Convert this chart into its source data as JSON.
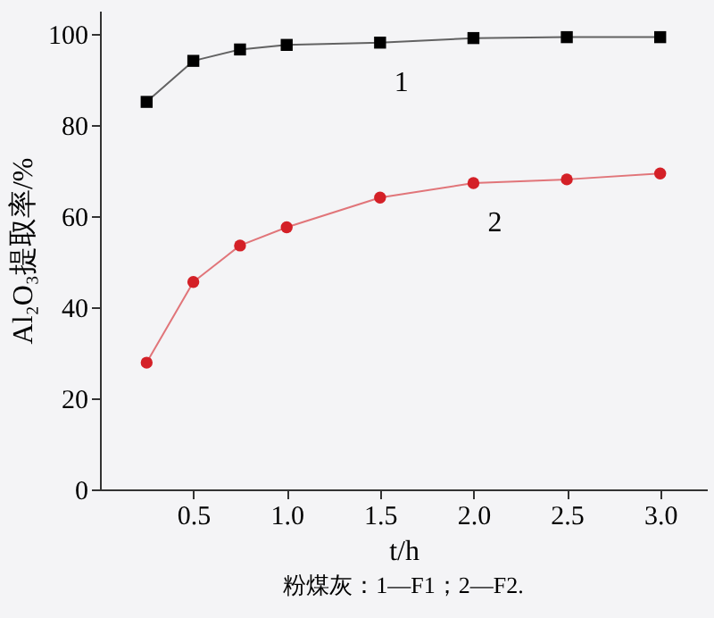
{
  "chart_data": {
    "type": "line",
    "xlabel": "t/h",
    "ylabel": "Al₂O₃提取率/%",
    "x": [
      0.25,
      0.5,
      0.75,
      1.0,
      1.5,
      2.0,
      2.5,
      3.0
    ],
    "series": [
      {
        "name": "1",
        "color": "#000000",
        "marker": "square",
        "values": [
          85,
          94,
          96.5,
          97.5,
          98,
          99,
          99.2,
          99.2
        ]
      },
      {
        "name": "2",
        "color": "#d42027",
        "marker": "circle",
        "values": [
          27.8,
          45.5,
          53.5,
          57.5,
          64,
          67.2,
          68,
          69.3
        ]
      }
    ],
    "xlim": [
      0,
      3.25
    ],
    "xticks": [
      {
        "value": 0.5,
        "label": "0.5"
      },
      {
        "value": 1.0,
        "label": "1.0"
      },
      {
        "value": 1.5,
        "label": "1.5"
      },
      {
        "value": 2.0,
        "label": "2.0"
      },
      {
        "value": 2.5,
        "label": "2.5"
      },
      {
        "value": 3.0,
        "label": "3.0"
      }
    ],
    "ylim": [
      0,
      105
    ],
    "yticks": [
      0,
      20,
      40,
      60,
      80,
      100
    ],
    "grid": false,
    "legend": false,
    "annotations": [
      "粉煤灰：1—F1；2—F2."
    ]
  }
}
